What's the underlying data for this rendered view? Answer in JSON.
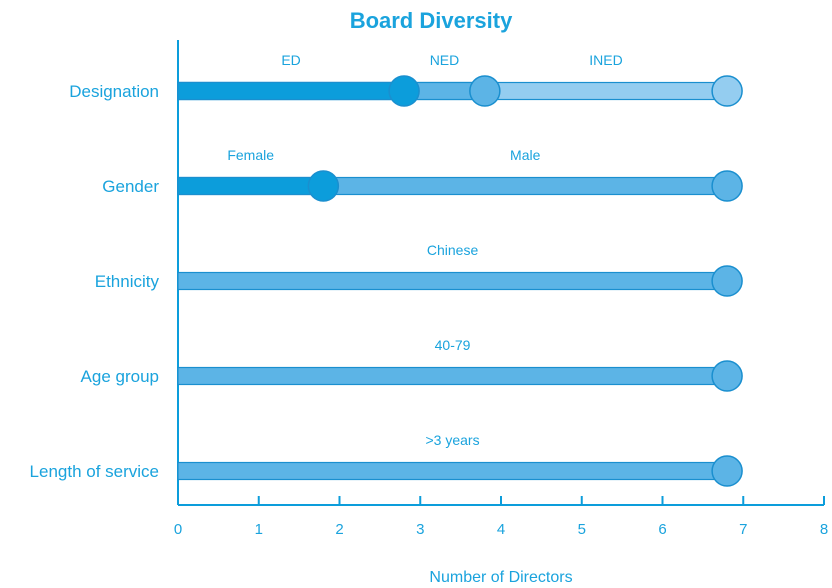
{
  "chart_data": {
    "type": "bar",
    "title": "Board Diversity",
    "xlabel": "Number of Directors",
    "ylabel": "",
    "xlim": [
      0,
      8
    ],
    "xticks": [
      "0",
      "1",
      "2",
      "3",
      "4",
      "5",
      "6",
      "7",
      "8"
    ],
    "grid": false,
    "categories": [
      "Designation",
      "Gender",
      "Ethnicity",
      "Age group",
      "Length of service"
    ],
    "rows": [
      {
        "category": "Designation",
        "segments": [
          {
            "name": "ED",
            "value": 2.8,
            "color": "#0c9ddb"
          },
          {
            "name": "NED",
            "value": 1,
            "color": "#5cb4e6"
          },
          {
            "name": "INED",
            "value": 3,
            "color": "#94cdf0"
          }
        ]
      },
      {
        "category": "Gender",
        "segments": [
          {
            "name": "Female",
            "value": 1.8,
            "color": "#0c9ddb"
          },
          {
            "name": "Male",
            "value": 5,
            "color": "#5cb4e6"
          }
        ]
      },
      {
        "category": "Ethnicity",
        "segments": [
          {
            "name": "Chinese",
            "value": 6.8,
            "color": "#5cb4e6"
          }
        ]
      },
      {
        "category": "Age group",
        "segments": [
          {
            "name": "40-79",
            "value": 6.8,
            "color": "#5cb4e6"
          }
        ]
      },
      {
        "category": "Length of service",
        "segments": [
          {
            "name": ">3 years",
            "value": 6.8,
            "color": "#5cb4e6"
          }
        ]
      }
    ],
    "colors": {
      "text": "#1aa3dd",
      "axis": "#0c9ddb",
      "outline": "#1a8fcf"
    }
  }
}
